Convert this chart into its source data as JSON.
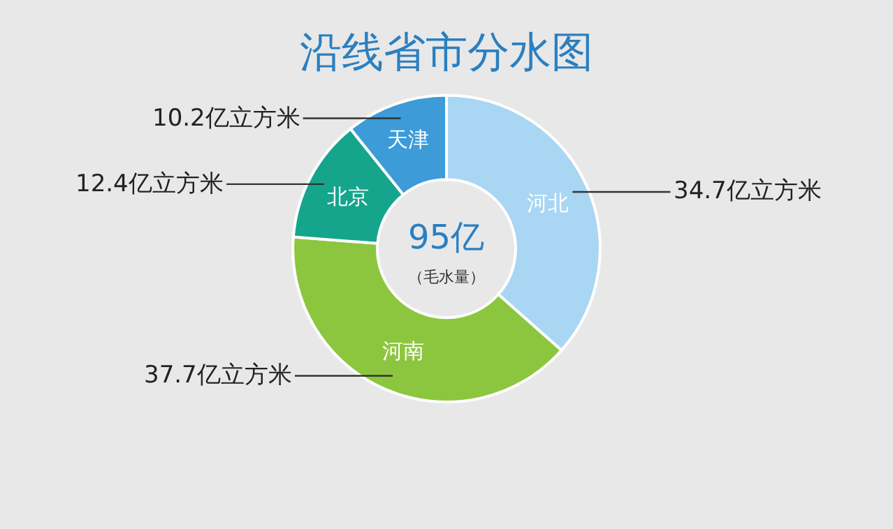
{
  "chart_data": {
    "type": "donut",
    "title": "沿线省市分水图",
    "categories": [
      "河北",
      "河南",
      "北京",
      "天津"
    ],
    "values": [
      34.7,
      37.7,
      12.4,
      10.2
    ],
    "colors": [
      "#a9d6f2",
      "#8cc63f",
      "#15a58c",
      "#3d9bd8"
    ],
    "value_labels": [
      "34.7亿立方米",
      "37.7亿立方米",
      "12.4亿立方米",
      "10.2亿立方米"
    ],
    "annotations": [
      "95亿",
      "（毛水量）"
    ],
    "legend": false
  }
}
